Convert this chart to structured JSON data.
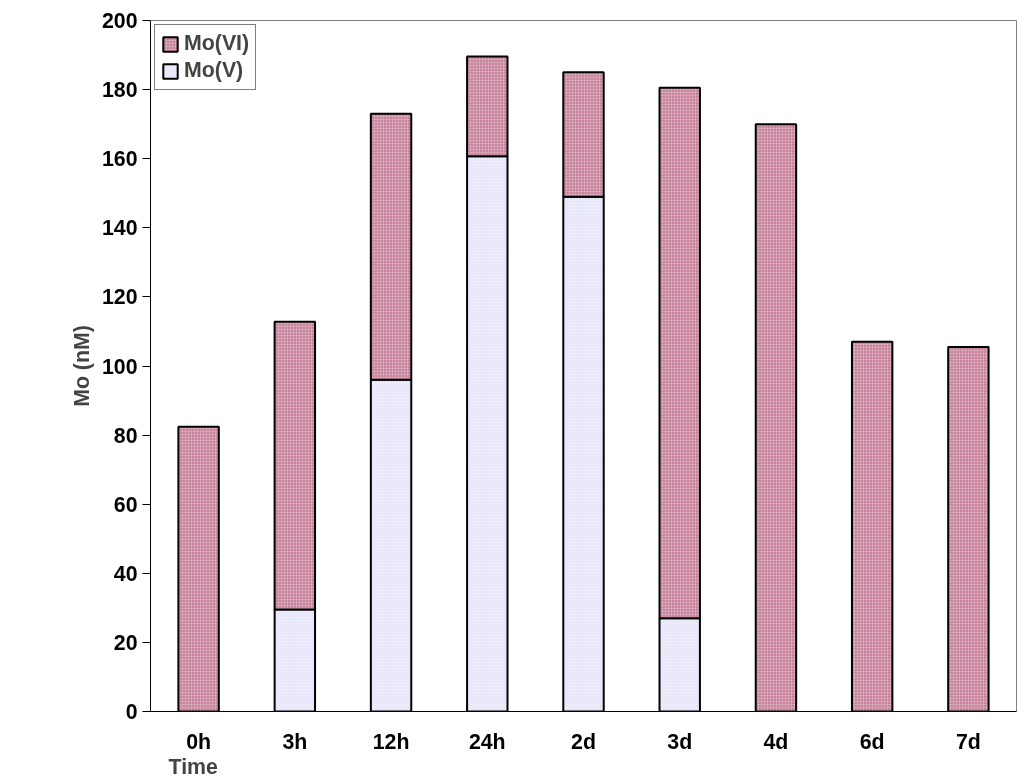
{
  "chart_data": {
    "type": "bar",
    "stacked": true,
    "xlabel": "Time",
    "ylabel": "Mo (nM)",
    "categories": [
      "0h",
      "3h",
      "12h",
      "24h",
      "2d",
      "3d",
      "4d",
      "6d",
      "7d"
    ],
    "series": [
      {
        "name": "Mo(V)",
        "color": "#e6e6fa",
        "values": [
          0,
          29.5,
          96,
          160.7,
          149,
          27,
          0,
          0,
          0
        ]
      },
      {
        "name": "Mo(VI)",
        "color": "#c8849e",
        "values": [
          82.4,
          83.3,
          77,
          28.9,
          36,
          153.5,
          170,
          107,
          105.5
        ]
      }
    ],
    "ylim": [
      0,
      200
    ],
    "yticks": [
      0,
      20,
      40,
      60,
      80,
      100,
      120,
      140,
      160,
      180,
      200
    ],
    "grid": false,
    "legend": "top left"
  }
}
